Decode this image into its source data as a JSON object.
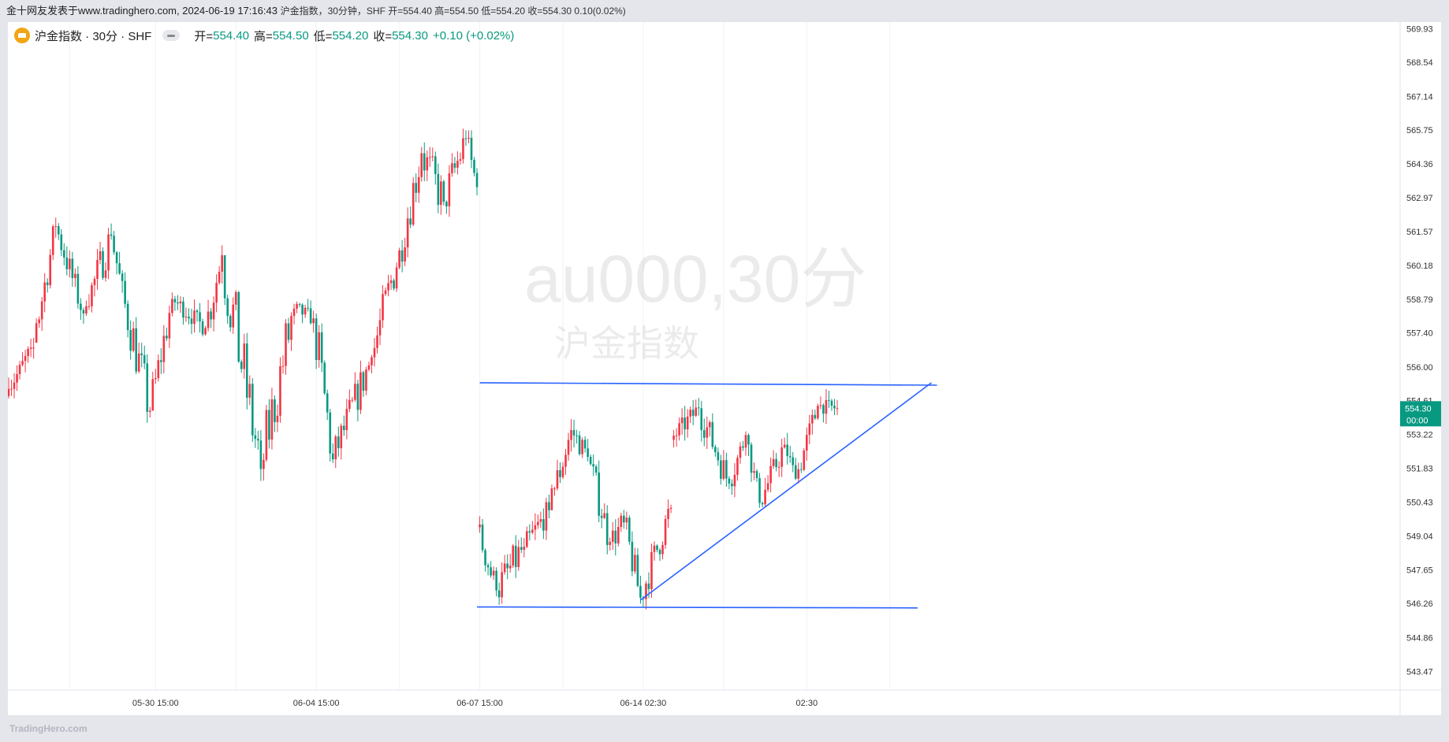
{
  "header": {
    "source_text": "金十网友发表于www.tradinghero.com, 2024-06-19 17:16:43",
    "summary_text": "沪金指数，30分钟，SHF 开=554.40 高=554.50 低=554.20 收=554.30 0.10(0.02%)"
  },
  "legend": {
    "symbol": "沪金指数 · 30分 · SHF",
    "open_label": "开=",
    "open_value": "554.40",
    "high_label": "高=",
    "high_value": "554.50",
    "low_label": "低=",
    "low_value": "554.20",
    "close_label": "收=",
    "close_value": "554.30",
    "change": "+0.10 (+0.02%)"
  },
  "watermark": {
    "ticker": "au000,30分",
    "name": "沪金指数"
  },
  "price_badge": {
    "price": "554.30",
    "countdown": "00:00"
  },
  "footer": {
    "logo": "TradingHero.com"
  },
  "colors": {
    "up": "#f23645",
    "down": "#089981",
    "trendline": "#2962ff",
    "badge": "#089981"
  },
  "chart_data": {
    "type": "candlestick",
    "timeframe": "30分",
    "y_ticks": [
      569.93,
      568.54,
      567.14,
      565.75,
      564.36,
      562.97,
      561.57,
      560.18,
      558.79,
      557.4,
      556.0,
      554.61,
      553.22,
      551.83,
      550.43,
      549.04,
      547.65,
      546.26,
      544.86,
      543.47
    ],
    "ylim": [
      542.7,
      570.2
    ],
    "x_labels": [
      "05-30 15:00",
      "06-04 15:00",
      "06-07 15:00",
      "06-14 02:30",
      "02:30"
    ],
    "x_label_index": [
      53,
      111,
      170,
      229,
      288
    ],
    "n_bars": 300,
    "segments": [
      {
        "from": 0,
        "to": 10,
        "start": 554.8,
        "end": 557.0,
        "hi": 556.8,
        "lo": 555.1
      },
      {
        "from": 10,
        "to": 18,
        "start": 557.0,
        "end": 561.8,
        "hi": 561.9,
        "lo": 557.8
      },
      {
        "from": 18,
        "to": 28,
        "start": 561.8,
        "end": 558.2,
        "hi": 561.6,
        "lo": 558.0
      },
      {
        "from": 28,
        "to": 38,
        "start": 558.2,
        "end": 561.4,
        "hi": 563.0,
        "lo": 558.5
      },
      {
        "from": 38,
        "to": 43,
        "start": 561.4,
        "end": 558.6,
        "hi": 561.2,
        "lo": 558.5
      },
      {
        "from": 43,
        "to": 52,
        "start": 558.6,
        "end": 554.2,
        "hi": 559.5,
        "lo": 553.4
      },
      {
        "from": 52,
        "to": 60,
        "start": 554.2,
        "end": 558.8,
        "hi": 560.0,
        "lo": 555.5
      },
      {
        "from": 60,
        "to": 72,
        "start": 558.8,
        "end": 557.6,
        "hi": 559.2,
        "lo": 557.0
      },
      {
        "from": 72,
        "to": 78,
        "start": 557.6,
        "end": 560.6,
        "hi": 562.5,
        "lo": 557.5
      },
      {
        "from": 78,
        "to": 92,
        "start": 560.6,
        "end": 551.8,
        "hi": 560.0,
        "lo": 550.6
      },
      {
        "from": 92,
        "to": 104,
        "start": 551.8,
        "end": 558.4,
        "hi": 559.0,
        "lo": 551.0
      },
      {
        "from": 104,
        "to": 111,
        "start": 558.4,
        "end": 558.0,
        "hi": 559.3,
        "lo": 557.4
      },
      {
        "from": 111,
        "to": 118,
        "start": 558.0,
        "end": 552.2,
        "hi": 558.4,
        "lo": 551.6
      },
      {
        "from": 118,
        "to": 132,
        "start": 552.2,
        "end": 556.4,
        "hi": 556.5,
        "lo": 552.0
      },
      {
        "from": 132,
        "to": 142,
        "start": 556.4,
        "end": 560.8,
        "hi": 561.0,
        "lo": 555.8
      },
      {
        "from": 142,
        "to": 150,
        "start": 560.8,
        "end": 564.8,
        "hi": 565.5,
        "lo": 560.0
      },
      {
        "from": 150,
        "to": 158,
        "start": 564.8,
        "end": 562.8,
        "hi": 565.5,
        "lo": 560.2
      },
      {
        "from": 158,
        "to": 166,
        "start": 562.8,
        "end": 565.4,
        "hi": 567.3,
        "lo": 562.5
      },
      {
        "from": 166,
        "to": 170,
        "start": 565.4,
        "end": 563.4,
        "hi": 566.0,
        "lo": 562.5
      },
      {
        "from": 170,
        "to": 177,
        "start": 549.4,
        "end": 546.8,
        "hi": 549.6,
        "lo": 545.9
      },
      {
        "from": 177,
        "to": 187,
        "start": 546.8,
        "end": 548.6,
        "hi": 550.4,
        "lo": 546.0
      },
      {
        "from": 187,
        "to": 196,
        "start": 548.6,
        "end": 550.1,
        "hi": 550.5,
        "lo": 547.5
      },
      {
        "from": 196,
        "to": 204,
        "start": 550.1,
        "end": 553.4,
        "hi": 555.2,
        "lo": 551.0
      },
      {
        "from": 204,
        "to": 210,
        "start": 553.4,
        "end": 552.3,
        "hi": 554.0,
        "lo": 551.2
      },
      {
        "from": 210,
        "to": 218,
        "start": 552.3,
        "end": 548.8,
        "hi": 552.0,
        "lo": 547.8
      },
      {
        "from": 218,
        "to": 223,
        "start": 548.8,
        "end": 549.6,
        "hi": 551.7,
        "lo": 548.5
      },
      {
        "from": 223,
        "to": 229,
        "start": 549.6,
        "end": 546.5,
        "hi": 549.8,
        "lo": 545.6
      },
      {
        "from": 229,
        "to": 240,
        "start": 546.5,
        "end": 550.2,
        "hi": 550.3,
        "lo": 546.4
      },
      {
        "from": 240,
        "to": 250,
        "start": 553.0,
        "end": 554.3,
        "hi": 555.0,
        "lo": 552.6
      },
      {
        "from": 250,
        "to": 261,
        "start": 554.3,
        "end": 551.2,
        "hi": 554.6,
        "lo": 550.8
      },
      {
        "from": 261,
        "to": 267,
        "start": 551.2,
        "end": 553.2,
        "hi": 553.4,
        "lo": 550.6
      },
      {
        "from": 267,
        "to": 272,
        "start": 553.2,
        "end": 550.4,
        "hi": 553.0,
        "lo": 550.0
      },
      {
        "from": 272,
        "to": 281,
        "start": 550.4,
        "end": 552.8,
        "hi": 553.3,
        "lo": 550.2
      },
      {
        "from": 281,
        "to": 285,
        "start": 552.8,
        "end": 551.4,
        "hi": 553.0,
        "lo": 550.8
      },
      {
        "from": 285,
        "to": 293,
        "start": 551.4,
        "end": 554.4,
        "hi": 554.8,
        "lo": 551.6
      },
      {
        "from": 293,
        "to": 300,
        "start": 554.4,
        "end": 554.3,
        "hi": 554.7,
        "lo": 553.8
      }
    ],
    "trendlines": [
      {
        "x1": 170,
        "y1": 555.35,
        "x2": 335,
        "y2": 555.25
      },
      {
        "x1": 169,
        "y1": 546.12,
        "x2": 328,
        "y2": 546.08
      },
      {
        "x1": 228,
        "y1": 546.4,
        "x2": 333,
        "y2": 555.35
      }
    ]
  }
}
